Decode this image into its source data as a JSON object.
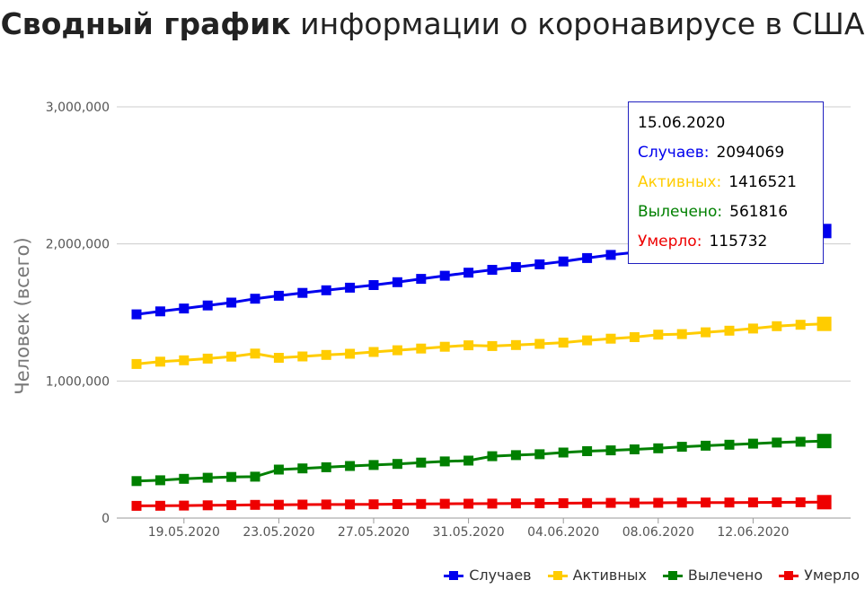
{
  "title": {
    "bold": "Сводный график",
    "rest": "информации о коронавирусе в США"
  },
  "chart_data": {
    "type": "line",
    "ylabel": "Человек (всего)",
    "ylim": [
      0,
      3000000
    ],
    "yticks": [
      "0",
      "1,000,000",
      "2,000,000",
      "3,000,000"
    ],
    "xticks": [
      "19.05.2020",
      "23.05.2020",
      "27.05.2020",
      "31.05.2020",
      "04.06.2020",
      "08.06.2020",
      "12.06.2020"
    ],
    "x": [
      "17.05.2020",
      "18.05.2020",
      "19.05.2020",
      "20.05.2020",
      "21.05.2020",
      "22.05.2020",
      "23.05.2020",
      "24.05.2020",
      "25.05.2020",
      "26.05.2020",
      "27.05.2020",
      "28.05.2020",
      "29.05.2020",
      "30.05.2020",
      "31.05.2020",
      "01.06.2020",
      "02.06.2020",
      "03.06.2020",
      "04.06.2020",
      "05.06.2020",
      "06.06.2020",
      "07.06.2020",
      "08.06.2020",
      "09.06.2020",
      "10.06.2020",
      "11.06.2020",
      "12.06.2020",
      "13.06.2020",
      "14.06.2020",
      "15.06.2020"
    ],
    "grid": true,
    "legend_position": "bottom-right",
    "series": [
      {
        "name": "Случаев",
        "color": "#0000ee",
        "values": [
          1486000,
          1508000,
          1529000,
          1551000,
          1572000,
          1600000,
          1622000,
          1643000,
          1662000,
          1681000,
          1700000,
          1721000,
          1745000,
          1768000,
          1790000,
          1811000,
          1831000,
          1851000,
          1872000,
          1897000,
          1920000,
          1938000,
          1956000,
          1979000,
          2000000,
          2023000,
          2048000,
          2074000,
          2093000,
          2094069
        ]
      },
      {
        "name": "Активных",
        "color": "#ffcc00",
        "values": [
          1124000,
          1141000,
          1151000,
          1163000,
          1178000,
          1200000,
          1169000,
          1179000,
          1190000,
          1199000,
          1212000,
          1224000,
          1237000,
          1250000,
          1260000,
          1255000,
          1262000,
          1271000,
          1280000,
          1296000,
          1309000,
          1320000,
          1338000,
          1342000,
          1355000,
          1367000,
          1383000,
          1400000,
          1410000,
          1416521
        ]
      },
      {
        "name": "Вылечено",
        "color": "#008000",
        "values": [
          270000,
          276000,
          286000,
          294000,
          300000,
          302000,
          354000,
          362000,
          371000,
          380000,
          387000,
          395000,
          405000,
          413000,
          419000,
          451000,
          459000,
          466000,
          478000,
          488000,
          494000,
          501000,
          509000,
          520000,
          528000,
          535000,
          543000,
          551000,
          557000,
          561816
        ]
      },
      {
        "name": "Умерло",
        "color": "#ee0000",
        "values": [
          89000,
          90000,
          91000,
          93000,
          94000,
          96000,
          97000,
          98000,
          99000,
          99500,
          100500,
          101500,
          103000,
          104000,
          104500,
          105500,
          106500,
          107500,
          108500,
          109500,
          110500,
          111000,
          111500,
          112500,
          113000,
          113500,
          114200,
          114800,
          115300,
          115732
        ]
      }
    ]
  },
  "tooltip": {
    "date": "15.06.2020",
    "rows": [
      {
        "label": "Случаев:",
        "value": "2094069",
        "color": "#0000ee"
      },
      {
        "label": "Активных:",
        "value": "1416521",
        "color": "#ffcc00"
      },
      {
        "label": "Вылечено:",
        "value": "561816",
        "color": "#008000"
      },
      {
        "label": "Умерло:",
        "value": "115732",
        "color": "#ee0000"
      }
    ]
  },
  "legend": [
    {
      "label": "Случаев",
      "color": "#0000ee"
    },
    {
      "label": "Активных",
      "color": "#ffcc00"
    },
    {
      "label": "Вылечено",
      "color": "#008000"
    },
    {
      "label": "Умерло",
      "color": "#ee0000"
    }
  ]
}
